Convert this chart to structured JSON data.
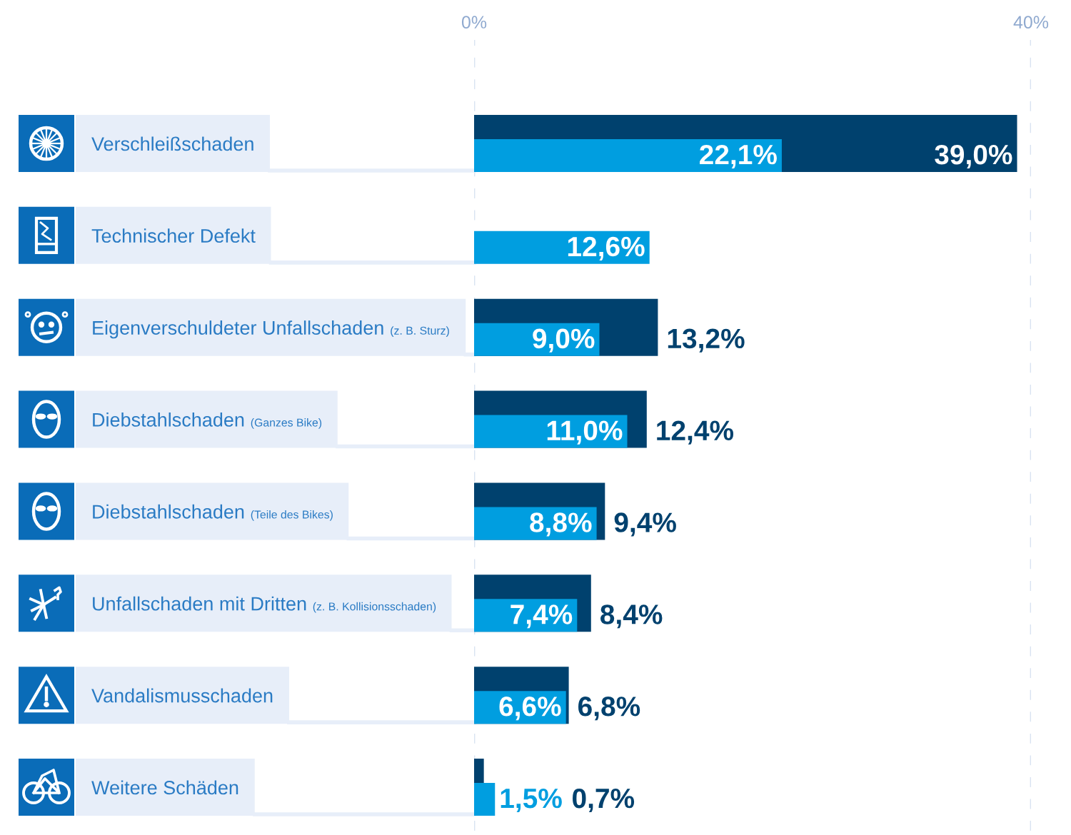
{
  "chart_data": {
    "type": "bar",
    "orientation": "horizontal",
    "categories": [
      "Verschleißschaden",
      "Technischer Defekt",
      "Eigenverschuldeter Unfallschaden (z. B. Sturz)",
      "Diebstahlschaden (Ganzes Bike)",
      "Diebstahlschaden (Teile des Bikes)",
      "Unfallschaden mit Dritten (z. B. Kollisionsschaden)",
      "Vandalismusschaden",
      "Weitere Schäden"
    ],
    "series": [
      {
        "color": "#00416e",
        "values": [
          39.0,
          null,
          13.2,
          12.4,
          9.4,
          8.4,
          6.8,
          0.7
        ],
        "value_labels": [
          "39,0%",
          null,
          "13,2%",
          "12,4%",
          "9,4%",
          "8,4%",
          "6,8%",
          "0,7%"
        ]
      },
      {
        "color": "#009ee0",
        "values": [
          22.1,
          12.6,
          9.0,
          11.0,
          8.8,
          7.4,
          6.6,
          1.5
        ],
        "value_labels": [
          "22,1%",
          "12,6%",
          "9,0%",
          "11,0%",
          "8,8%",
          "7,4%",
          "6,6%",
          "1,5%"
        ]
      }
    ],
    "xlim": [
      0,
      40
    ],
    "xticks": [
      {
        "value": 0,
        "label": "0%"
      },
      {
        "value": 40,
        "label": "40%"
      }
    ],
    "grid": "x"
  }
}
